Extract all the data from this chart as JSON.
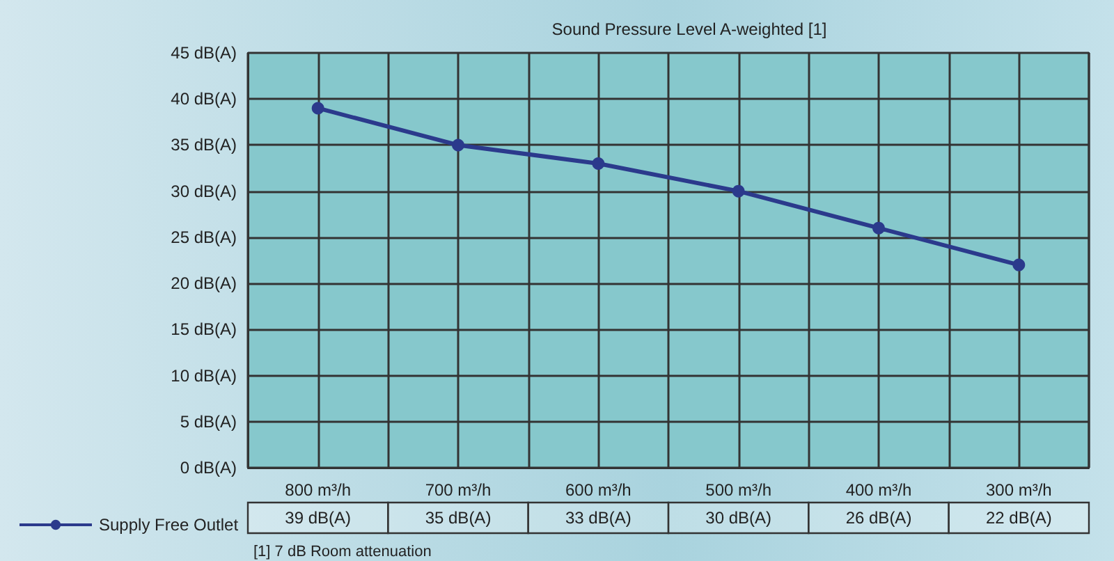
{
  "chart_data": {
    "type": "line",
    "title": "Sound Pressure Level A-weighted [1]",
    "categories": [
      "800 m³/h",
      "700 m³/h",
      "600 m³/h",
      "500 m³/h",
      "400 m³/h",
      "300 m³/h"
    ],
    "series": [
      {
        "name": "Supply Free Outlet",
        "color": "#2b3a8c",
        "values": [
          39,
          35,
          33,
          30,
          26,
          22
        ],
        "value_labels": [
          "39 dB(A)",
          "35 dB(A)",
          "33 dB(A)",
          "30 dB(A)",
          "26 dB(A)",
          "22 dB(A)"
        ]
      }
    ],
    "ylim": [
      0,
      45
    ],
    "yticks": [
      {
        "value": 0,
        "label": "0 dB(A)"
      },
      {
        "value": 5,
        "label": "5 dB(A)"
      },
      {
        "value": 10,
        "label": "10 dB(A)"
      },
      {
        "value": 15,
        "label": "15 dB(A)"
      },
      {
        "value": 20,
        "label": "20 dB(A)"
      },
      {
        "value": 25,
        "label": "25 dB(A)"
      },
      {
        "value": 30,
        "label": "30 dB(A)"
      },
      {
        "value": 35,
        "label": "35 dB(A)"
      },
      {
        "value": 40,
        "label": "40 dB(A)"
      },
      {
        "value": 45,
        "label": "45 dB(A)"
      }
    ],
    "grid": true,
    "legend": "bottom left",
    "marker": "circle",
    "line_style": "solid",
    "annotations": [
      "[1] 7 dB Room attenuation"
    ]
  }
}
